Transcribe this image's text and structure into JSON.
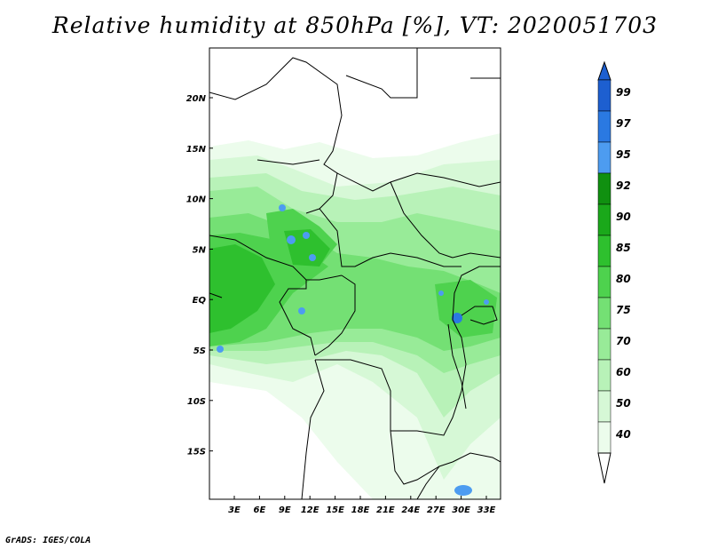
{
  "title": "Relative humidity at 850hPa [%], VT: 2020051703",
  "footer": "GrADS: IGES/COLA",
  "lat_ticks": [
    "20N",
    "15N",
    "10N",
    "5N",
    "EQ",
    "5S",
    "10S",
    "15S"
  ],
  "lon_ticks": [
    "3E",
    "6E",
    "9E",
    "12E",
    "15E",
    "18E",
    "21E",
    "24E",
    "27E",
    "30E",
    "33E"
  ],
  "colorbar": {
    "labels": [
      "99",
      "97",
      "95",
      "92",
      "90",
      "85",
      "80",
      "75",
      "70",
      "60",
      "50",
      "40"
    ],
    "colors": [
      "#1d5fd0",
      "#2a79e2",
      "#4d9cf0",
      "#109010",
      "#1aa81a",
      "#2ec02e",
      "#4ed24e",
      "#74e074",
      "#98eb98",
      "#b8f2b8",
      "#d6f8d6",
      "#ecfcec"
    ]
  },
  "map": {
    "projection_extent_lon": [
      0,
      35
    ],
    "projection_extent_lat": [
      -20,
      24
    ]
  }
}
